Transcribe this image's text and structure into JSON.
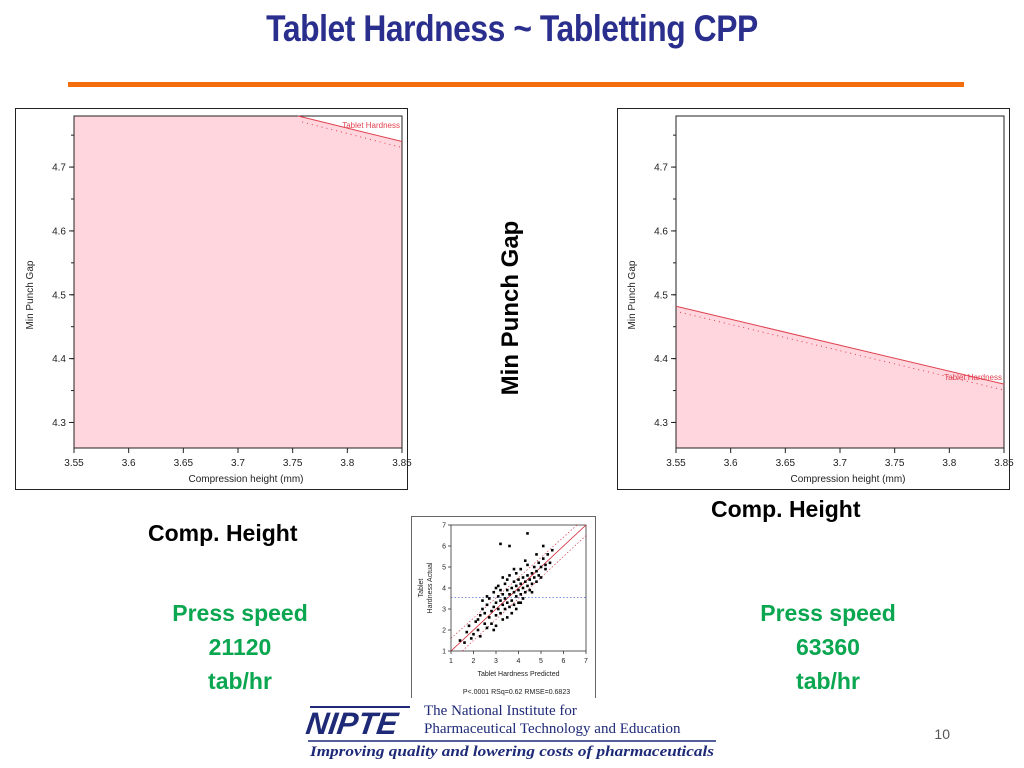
{
  "slide": {
    "title": "Tablet Hardness ~ Tabletting CPP",
    "rule_color": "#f46d0d",
    "title_color": "#2a2f8e",
    "page_number": "10"
  },
  "labels": {
    "left_comp_height": "Comp. Height",
    "right_comp_height": "Comp. Height",
    "center_min_punch_gap": "Min Punch Gap",
    "left_press": [
      "Press speed",
      "21120",
      "tab/hr"
    ],
    "right_press": [
      "Press speed",
      "63360",
      "tab/hr"
    ]
  },
  "footer": {
    "logo_text": "NIPTE",
    "org_line1": "The National Institute for",
    "org_line2": "Pharmaceutical Technology and Education",
    "tagline": "Improving quality and lowering costs of pharmaceuticals"
  },
  "chart_data": [
    {
      "type": "area",
      "xlabel": "Compression height (mm)",
      "ylabel": "Min Punch Gap",
      "xlim": [
        3.55,
        3.85
      ],
      "ylim": [
        4.26,
        4.78
      ],
      "xticks": [
        "3.55",
        "3.6",
        "3.65",
        "3.7",
        "3.75",
        "3.8",
        "3.85"
      ],
      "yticks": [
        "4.3",
        "4.4",
        "4.5",
        "4.6",
        "4.7"
      ],
      "contour_label": "Tablet Hardness",
      "contour": [
        [
          3.755,
          4.78
        ],
        [
          3.85,
          4.74
        ]
      ],
      "fill_color": "#ffd6dd",
      "line_color": "#e0404f"
    },
    {
      "type": "area",
      "xlabel": "Compression height (mm)",
      "ylabel": "Min Punch Gap",
      "xlim": [
        3.55,
        3.85
      ],
      "ylim": [
        4.26,
        4.78
      ],
      "xticks": [
        "3.55",
        "3.6",
        "3.65",
        "3.7",
        "3.75",
        "3.8",
        "3.85"
      ],
      "yticks": [
        "4.3",
        "4.4",
        "4.5",
        "4.6",
        "4.7"
      ],
      "contour_label": "Tablet Hardness",
      "contour": [
        [
          3.55,
          4.482
        ],
        [
          3.85,
          4.36
        ]
      ],
      "fill_color": "#ffd6dd",
      "line_color": "#e0404f"
    },
    {
      "type": "scatter",
      "xlabel": "Tablet Hardness Predicted",
      "ylabel": "Tablet Hardness Actual",
      "stats": "P<.0001 RSq=0.62 RMSE=0.6823",
      "xlim": [
        1,
        7
      ],
      "ylim": [
        1,
        7
      ],
      "xticks": [
        "1",
        "2",
        "3",
        "4",
        "5",
        "6",
        "7"
      ],
      "yticks": [
        "1",
        "2",
        "3",
        "4",
        "5",
        "6",
        "7"
      ],
      "mean_y": 3.55,
      "points": [
        [
          1.4,
          1.5
        ],
        [
          1.6,
          1.4
        ],
        [
          1.7,
          1.9
        ],
        [
          1.8,
          2.2
        ],
        [
          1.9,
          1.6
        ],
        [
          2.0,
          1.8
        ],
        [
          2.1,
          2.4
        ],
        [
          2.2,
          2.0
        ],
        [
          2.3,
          2.7
        ],
        [
          2.3,
          1.7
        ],
        [
          2.4,
          3.0
        ],
        [
          2.5,
          2.3
        ],
        [
          2.5,
          2.8
        ],
        [
          2.6,
          3.2
        ],
        [
          2.6,
          2.1
        ],
        [
          2.7,
          2.6
        ],
        [
          2.7,
          3.5
        ],
        [
          2.8,
          2.9
        ],
        [
          2.8,
          2.3
        ],
        [
          2.9,
          3.1
        ],
        [
          2.9,
          3.8
        ],
        [
          3.0,
          3.3
        ],
        [
          3.0,
          2.7
        ],
        [
          3.0,
          2.2
        ],
        [
          3.1,
          3.6
        ],
        [
          3.1,
          3.0
        ],
        [
          3.1,
          4.1
        ],
        [
          3.2,
          3.4
        ],
        [
          3.2,
          2.8
        ],
        [
          3.2,
          3.9
        ],
        [
          3.3,
          3.2
        ],
        [
          3.3,
          3.7
        ],
        [
          3.3,
          2.5
        ],
        [
          3.4,
          4.2
        ],
        [
          3.4,
          3.5
        ],
        [
          3.4,
          3.0
        ],
        [
          3.5,
          3.9
        ],
        [
          3.5,
          3.3
        ],
        [
          3.5,
          4.4
        ],
        [
          3.6,
          3.7
        ],
        [
          3.6,
          3.1
        ],
        [
          3.6,
          4.6
        ],
        [
          3.7,
          4.0
        ],
        [
          3.7,
          3.4
        ],
        [
          3.7,
          2.8
        ],
        [
          3.8,
          4.3
        ],
        [
          3.8,
          3.8
        ],
        [
          3.8,
          3.2
        ],
        [
          3.9,
          4.1
        ],
        [
          3.9,
          3.6
        ],
        [
          3.9,
          4.7
        ],
        [
          4.0,
          4.4
        ],
        [
          4.0,
          3.9
        ],
        [
          4.0,
          3.3
        ],
        [
          4.1,
          4.2
        ],
        [
          4.1,
          3.7
        ],
        [
          4.1,
          4.9
        ],
        [
          4.2,
          4.5
        ],
        [
          4.2,
          4.0
        ],
        [
          4.2,
          3.5
        ],
        [
          4.3,
          4.3
        ],
        [
          4.3,
          3.8
        ],
        [
          4.4,
          4.6
        ],
        [
          4.4,
          4.1
        ],
        [
          4.4,
          5.1
        ],
        [
          4.5,
          4.4
        ],
        [
          4.5,
          3.9
        ],
        [
          4.6,
          4.7
        ],
        [
          4.6,
          4.2
        ],
        [
          4.7,
          5.0
        ],
        [
          4.7,
          4.5
        ],
        [
          4.8,
          4.8
        ],
        [
          4.8,
          4.3
        ],
        [
          4.9,
          5.2
        ],
        [
          4.9,
          4.6
        ],
        [
          5.0,
          5.0
        ],
        [
          5.0,
          4.5
        ],
        [
          5.1,
          5.4
        ],
        [
          5.2,
          4.9
        ],
        [
          5.3,
          5.6
        ],
        [
          5.4,
          5.2
        ],
        [
          5.5,
          5.8
        ],
        [
          3.2,
          6.1
        ],
        [
          3.6,
          6.0
        ],
        [
          4.4,
          6.6
        ],
        [
          5.1,
          6.0
        ],
        [
          2.4,
          3.4
        ],
        [
          3.0,
          4.0
        ],
        [
          3.5,
          2.6
        ],
        [
          4.1,
          3.3
        ],
        [
          4.6,
          3.8
        ],
        [
          2.9,
          2.0
        ],
        [
          3.3,
          4.5
        ],
        [
          3.9,
          3.0
        ],
        [
          4.3,
          5.3
        ],
        [
          4.8,
          5.6
        ],
        [
          5.2,
          5.1
        ],
        [
          2.2,
          2.5
        ],
        [
          2.6,
          3.6
        ],
        [
          3.8,
          4.9
        ]
      ]
    }
  ]
}
